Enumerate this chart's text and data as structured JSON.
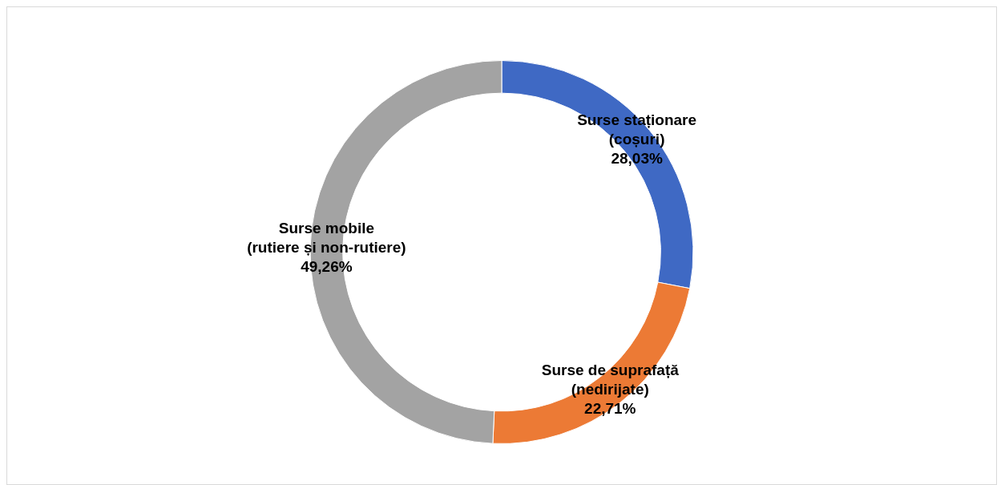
{
  "chart_data": {
    "type": "donut",
    "categories": [
      "Surse staționare (coșuri)",
      "Surse de suprafață (nedirijate)",
      "Surse mobile (rutiere și non-rutiere)"
    ],
    "values": [
      28.03,
      22.71,
      49.26
    ],
    "colors": [
      "#3f69c4",
      "#ec7a35",
      "#a3a3a3"
    ],
    "value_labels": [
      "28,03%",
      "22,71%",
      "49,26%"
    ],
    "legend": false
  }
}
